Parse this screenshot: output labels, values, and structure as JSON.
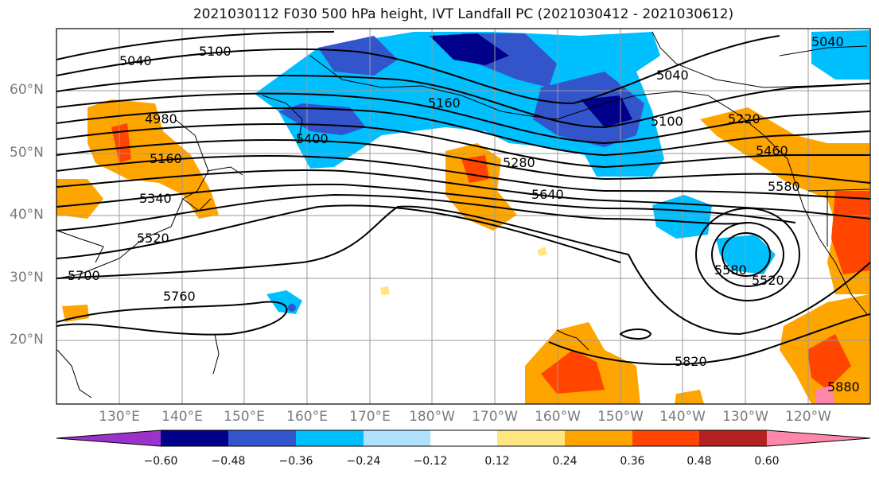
{
  "title": "2021030112 F030 500 hPa height, IVT Landfall PC (2021030412 - 2021030612)",
  "lat_labels": [
    "60°N",
    "50°N",
    "40°N",
    "30°N",
    "20°N"
  ],
  "lon_labels": [
    "130°E",
    "140°E",
    "150°E",
    "160°E",
    "170°E",
    "180°W",
    "170°W",
    "160°W",
    "150°W",
    "140°W",
    "130°W",
    "120°W"
  ],
  "contour_labels": [
    "5040",
    "5100",
    "4980",
    "5160",
    "5340",
    "5520",
    "5700",
    "5760",
    "5400",
    "5160",
    "5280",
    "5640",
    "5040",
    "5100",
    "5040",
    "5220",
    "5460",
    "5580",
    "5520",
    "5580",
    "5820",
    "5880"
  ],
  "colorbar": {
    "ticks": [
      "−0.60",
      "−0.48",
      "−0.36",
      "−0.24",
      "−0.12",
      "0.12",
      "0.24",
      "0.36",
      "0.48",
      "0.60"
    ],
    "colors": [
      "#9933cc",
      "#00008b",
      "#3355cc",
      "#00bfff",
      "#b0e2ff",
      "#ffffff",
      "#ffe680",
      "#ffa500",
      "#ff4500",
      "#b22222",
      "#ff88aa"
    ]
  }
}
